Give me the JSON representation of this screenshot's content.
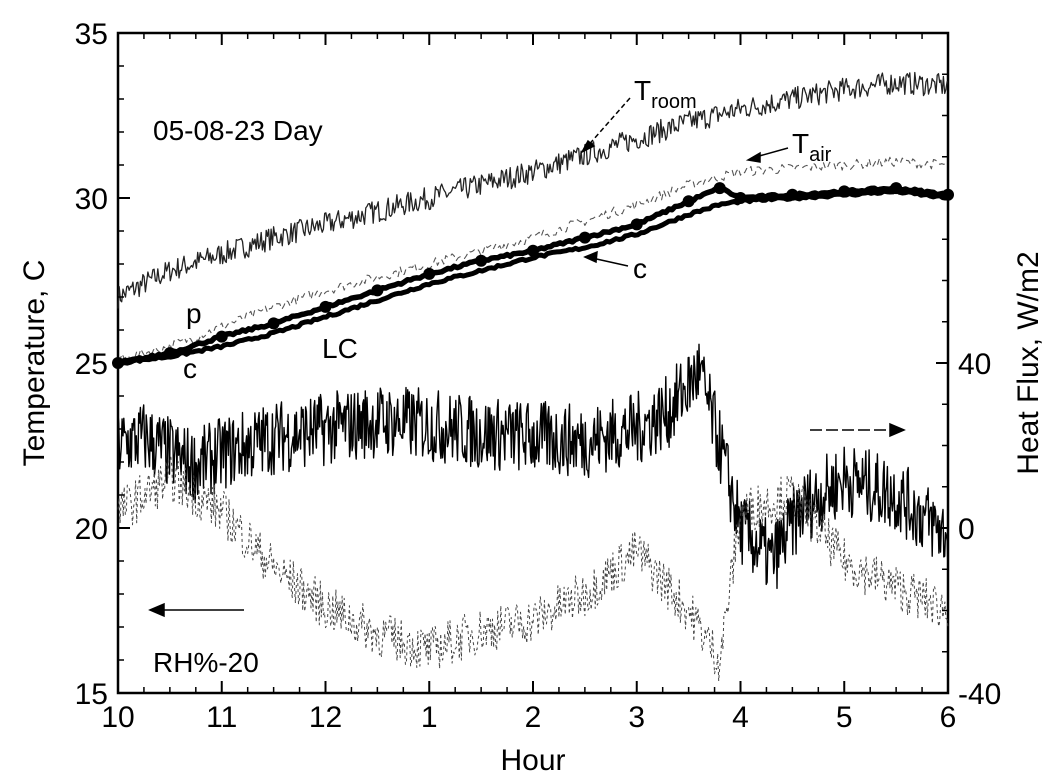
{
  "chart_data": {
    "type": "line",
    "xlabel": "Hour",
    "ylabel": "Temperature, C",
    "y2label": "Heat Flux, W/m2",
    "annotation_date": "05-08-23 Day",
    "xlim": [
      10,
      18
    ],
    "ylim": [
      15,
      35
    ],
    "y2lim": [
      -40,
      120
    ],
    "x_ticks": [
      10,
      11,
      12,
      13,
      14,
      15,
      16,
      17,
      18
    ],
    "x_tick_labels": [
      "10",
      "11",
      "12",
      "1",
      "2",
      "3",
      "4",
      "5",
      "6"
    ],
    "y_ticks": [
      15,
      20,
      25,
      30,
      35
    ],
    "y_tick_labels": [
      "15",
      "20",
      "25",
      "30",
      "35"
    ],
    "y2_ticks": [
      -40,
      0,
      40
    ],
    "y2_tick_labels": [
      "-40",
      "0",
      "40"
    ],
    "grid": false,
    "labels": {
      "troom_main": "T",
      "troom_sub": "room",
      "tair_main": "T",
      "tair_sub": "air",
      "c_upper": "c",
      "c_lower": "c",
      "p": "p",
      "lc": "LC",
      "rh": "RH%-20"
    },
    "series": [
      {
        "key": "troom",
        "x": [
          10,
          10.5,
          11,
          11.5,
          12,
          12.5,
          13,
          13.5,
          14,
          14.5,
          15,
          15.5,
          16,
          16.5,
          17,
          17.5,
          18
        ],
        "y": [
          27.0,
          27.8,
          28.3,
          28.8,
          29.2,
          29.6,
          30.0,
          30.4,
          30.8,
          31.3,
          31.8,
          32.3,
          32.7,
          33.0,
          33.3,
          33.5,
          33.4
        ]
      },
      {
        "key": "tair",
        "x": [
          10,
          10.5,
          11,
          11.5,
          12,
          12.5,
          13,
          13.5,
          14,
          14.5,
          15,
          15.5,
          16,
          16.5,
          17,
          17.5,
          18
        ],
        "y": [
          25.1,
          25.5,
          26.1,
          26.7,
          27.2,
          27.6,
          28.0,
          28.4,
          28.8,
          29.3,
          29.8,
          30.4,
          30.8,
          30.9,
          31.0,
          31.1,
          31.0
        ]
      },
      {
        "key": "c_upper",
        "x": [
          10,
          10.5,
          11,
          11.5,
          12,
          12.5,
          13,
          13.5,
          14,
          14.5,
          15,
          15.5,
          15.8,
          16,
          16.5,
          17,
          17.5,
          18
        ],
        "y": [
          25.0,
          25.3,
          25.8,
          26.2,
          26.7,
          27.2,
          27.7,
          28.1,
          28.4,
          28.8,
          29.2,
          29.9,
          30.3,
          30.0,
          30.1,
          30.2,
          30.3,
          30.1
        ]
      },
      {
        "key": "c_lower",
        "x": [
          10,
          10.5,
          11,
          11.5,
          12,
          12.5,
          13,
          13.5,
          14,
          14.5,
          15,
          15.5,
          15.8,
          16,
          16.5,
          17,
          17.5,
          18
        ],
        "y": [
          25.0,
          25.2,
          25.5,
          25.9,
          26.4,
          26.9,
          27.4,
          27.8,
          28.2,
          28.5,
          28.9,
          29.5,
          29.8,
          29.9,
          30.0,
          30.1,
          30.2,
          30.0
        ]
      },
      {
        "key": "heat_flux",
        "axis": "right",
        "x": [
          10,
          10.25,
          10.5,
          10.75,
          11,
          11.5,
          12,
          12.5,
          13,
          13.5,
          14,
          14.5,
          15,
          15.3,
          15.6,
          15.8,
          16,
          16.3,
          16.6,
          17,
          17.5,
          18
        ],
        "y": [
          20,
          22,
          18,
          15,
          18,
          22,
          24,
          26,
          25,
          23,
          22,
          21,
          24,
          28,
          38,
          20,
          0,
          -8,
          5,
          12,
          8,
          -2
        ]
      },
      {
        "key": "rh",
        "x": [
          10,
          10.5,
          11,
          11.5,
          12,
          12.5,
          13,
          13.5,
          14,
          14.5,
          15,
          15.5,
          15.8,
          16,
          16.5,
          17,
          17.5,
          18
        ],
        "y": [
          20.5,
          21.5,
          20.5,
          18.8,
          17.6,
          16.8,
          16.3,
          16.9,
          17.2,
          18.0,
          19.3,
          17.5,
          16.0,
          20.5,
          21.0,
          19.0,
          18.2,
          17.5
        ]
      }
    ]
  }
}
